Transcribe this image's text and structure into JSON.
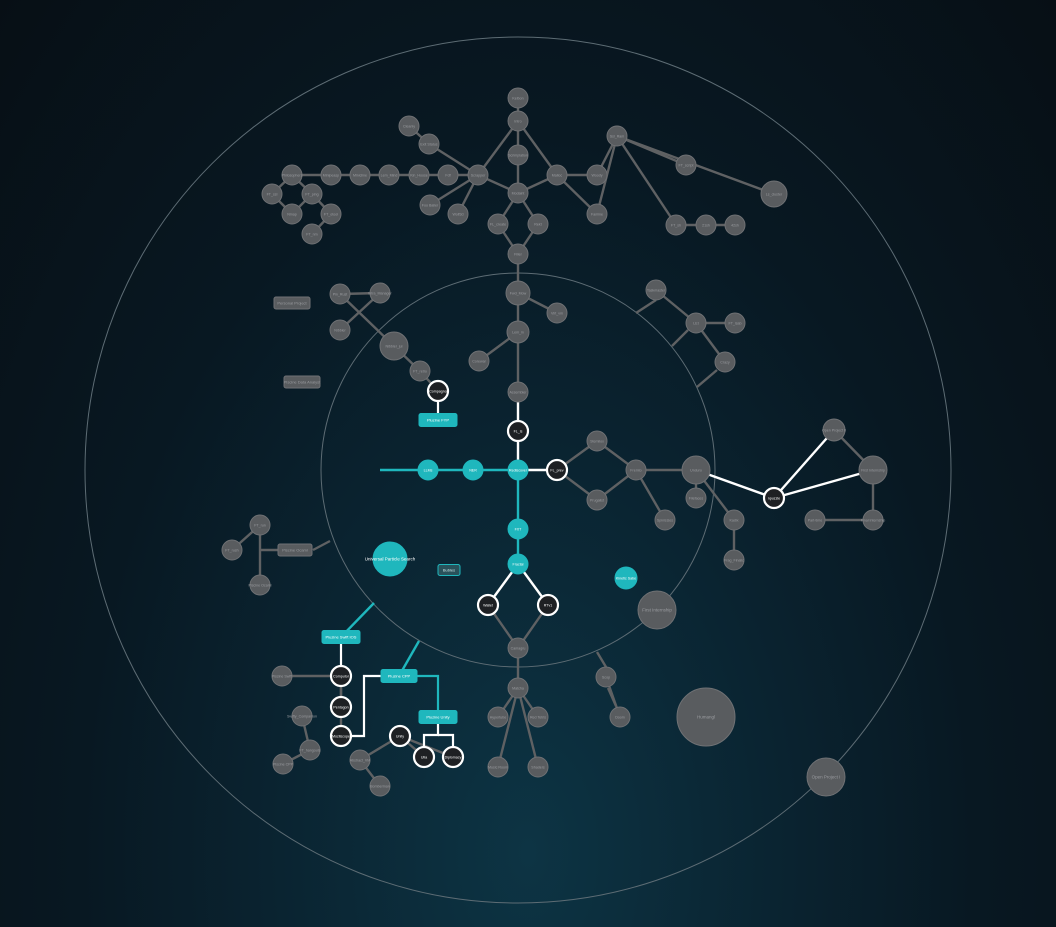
{
  "colors": {
    "accent": "#1fb7bd",
    "unlocked": "#ffffff",
    "locked_node": "#595c5f",
    "locked_stroke": "#6f7174",
    "locked_edge": "#5f6163",
    "locked_text": "#9a9ca0",
    "unlocked_node": "#1e2023",
    "ring": "#5d6c74"
  },
  "nodes": {
    "center": "Rediscover",
    "fl_ls": "FL_ls",
    "fl_prev": "FL_prev",
    "llm": "LLMs",
    "ner": "NER",
    "fxt": "FXT",
    "fractal": "Fractal",
    "wallet": "Wallet",
    "rtv": "RTv1",
    "carte": "Carte",
    "compagno": "Compagno",
    "plinko_fw": "Pluzine FYP",
    "plinko_left": "Pluzine Swift IOS",
    "plinko_cpp": "Pluzine CPP",
    "plinko_unity": "Pluzine Unity",
    "unl_1": "Computor",
    "unl_2": "Pentagon",
    "unl_3": "Mozliscope",
    "unl_4": "Unity",
    "unl_5": "Ulia",
    "unl_6": "Diplomacy",
    "unl_7": "npuzzle",
    "teal_center": "Universal Particle Search",
    "teal_right": "Kinetic Sabe",
    "ts_btn": "Bubles",
    "n1": "Kelbon",
    "n2": "Intro",
    "n3": "Scrimplation",
    "n4": "Modaint",
    "n5": "FL_create",
    "n6": "Rekt",
    "n7": "Filler",
    "n8": "Fwd_Mow",
    "n9": "Lem_in",
    "n10": "Corewar",
    "n11": "Assembler",
    "n12": "Virt_vm",
    "n13": "Stemilox",
    "n14": "Prugalist",
    "n15": "Fremto",
    "n16": "Unduro",
    "n17": "Filefaces",
    "n18": "Spinisizes",
    "n19": "Kadix",
    "n20": "Frag_Finalic",
    "n21": "First Internship",
    "n22": "Scrapper",
    "n23": "Exit Status",
    "n24": "Cleanly",
    "n25": "Foo Baller",
    "n26": "Wolf3d",
    "n27": "Fdf",
    "n28": "Kin_Hoose",
    "n29": "Lem_Mind",
    "n30": "Minicline",
    "n31": "Minipeasp",
    "n32": "Philosophers",
    "n33": "FT_ssl",
    "n34": "FT_ping",
    "n35": "Nmap",
    "n36": "FT_otool",
    "n37": "FT_nm",
    "n38": "Malloc",
    "n39": "Woody",
    "n40": "Famine",
    "n41": "Ssl_Ram",
    "n42": "FT_script",
    "n43": "Ls_cluster",
    "n44": "FT_sh",
    "n45": "21sh",
    "n46": "42sh",
    "n47": "Taskmaster",
    "n48": "LEt",
    "n49": "FT_lsab",
    "n50": "Crazy",
    "n51": "Pin_Rust",
    "n52": "Intra_Manager",
    "n53": "Nibbler",
    "n54": "Nibbler_jul",
    "n55": "FT_retro",
    "n56": "FT_run",
    "n57": "FT_rush",
    "n58": "Piscine Ocaml",
    "n59": "Piscine Swift",
    "n60": "Swifty_Companion",
    "n61": "FT_hangouts",
    "n62": "Piscine CPP",
    "n63": "Abstract_VM",
    "n64": "Bomberman",
    "n65": "Camagru",
    "n66": "Matcha",
    "n67": "Hypertube",
    "n68": "Red Tetris",
    "n69": "Music Room",
    "n70": "Shaders",
    "n71": "Scop",
    "n72": "Doom",
    "n73": "Humangl",
    "n74": "Open Project I",
    "n75": "Open Project II",
    "n76": "First Internship",
    "n77": "Part-time",
    "n78": "Final Internship",
    "n79": "Unity",
    "n80": "Kfs",
    "n81": "Snow_Crash",
    "n82": "Rainfall",
    "n83": "Override",
    "n84": "Darkly",
    "n85": "Boot2Root",
    "n86": "Dr_Quine",
    "n87": "Matt_daemon",
    "n88": "Strace",
    "n89": "Expert_system",
    "n90": "Computorv2",
    "n91": "N-Puzzle",
    "n92": "Gomoku",
    "n93": "Multilayer",
    "n94": "Gbmu",
    "n95": "Ready_set_boole",
    "n96": "Ft_linear",
    "n97": "Dslr",
    "n98": "Total",
    "n99": "FT_select",
    "n100": "FT_p",
    "n101": "FT_irc",
    "n102": "Vinyl",
    "n103": "Kernel",
    "n104": "Xlsm",
    "n105": "Lem_ipc",
    "n106": "ABC",
    "n107": "XYZ",
    "n108": "JKL",
    "n109": "MNO",
    "n110": "PQR"
  },
  "boxes": {
    "b1": "Personal Project",
    "b2": "Piscine Data Analyst",
    "b3": "Piscine Ocaml"
  }
}
